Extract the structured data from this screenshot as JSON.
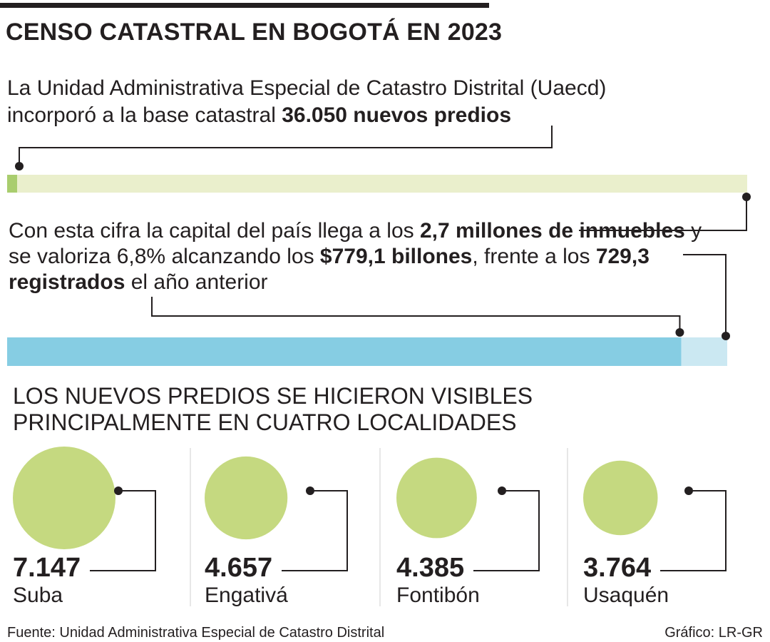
{
  "title": "CENSO CATASTRAL EN BOGOTÁ EN 2023",
  "intro": {
    "text": "La Unidad Administrativa Especial de Catastro Distrital (Uaecd) incorporó a la base catastral ",
    "bold": "36.050 nuevos predios"
  },
  "paragraph2": {
    "part1": "Con esta cifra la capital del país llega a los ",
    "bold1": "2,7 millones de inmuebles",
    "part2": " y se valoriza 6,8% alcanzando los ",
    "bold2": "$779,1 billones",
    "part3": ", frente a los ",
    "bold3": "729,3 registrados",
    "part4": " el año anterior"
  },
  "subtitle": "LOS NUEVOS PREDIOS SE HICIERON VISIBLES PRINCIPALMENTE EN CUATRO LOCALIDADES",
  "colors": {
    "green": "#c5d980",
    "green_light": "#eaefcc",
    "green_mark": "#a9cd6e",
    "blue": "#86cde3",
    "blue_light": "#cbe8f2",
    "ink": "#231f20",
    "divider": "#cfcfcf"
  },
  "chart_data": [
    {
      "type": "bar",
      "categories": [
        "nuevos predios",
        "inmuebles"
      ],
      "values": [
        36050,
        2700000
      ],
      "unit_note": "proportion bar: new properties vs. total properties"
    },
    {
      "type": "bar",
      "categories": [
        "año anterior",
        "2023"
      ],
      "values": [
        729.3,
        779.1
      ],
      "unit": "billones"
    },
    {
      "type": "bubble",
      "categories": [
        "Suba",
        "Engativá",
        "Fontibón",
        "Usaquén"
      ],
      "labels": [
        "7.147",
        "4.657",
        "4.385",
        "3.764"
      ],
      "values": [
        7147,
        4657,
        4385,
        3764
      ]
    }
  ],
  "footer": {
    "source": "Fuente: Unidad Administrativa Especial de Catastro Distrital",
    "credit": "Gráfico: LR-GR"
  }
}
